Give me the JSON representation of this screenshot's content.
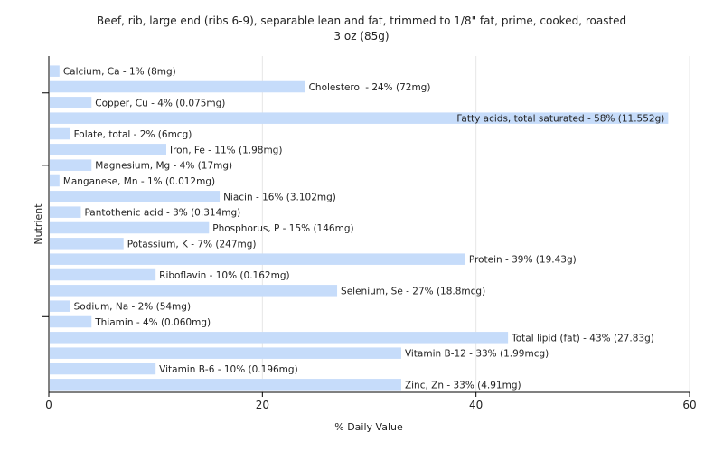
{
  "chart_data": {
    "type": "bar",
    "orientation": "horizontal",
    "title": "Beef, rib, large end (ribs 6-9), separable lean and fat, trimmed to 1/8\" fat, prime, cooked, roasted",
    "subtitle": "3 oz (85g)",
    "xlabel": "% Daily Value",
    "ylabel": "Nutrient",
    "xlim": [
      0,
      60
    ],
    "x_ticks": [
      0,
      20,
      40,
      60
    ],
    "grid": "vertical",
    "colors": {
      "bar": "#c6dcfa",
      "grid": "#e6e6e6",
      "axis": "#000000",
      "text": "#222222"
    },
    "categories": [
      "Calcium, Ca - 1% (8mg)",
      "Cholesterol - 24% (72mg)",
      "Copper, Cu - 4% (0.075mg)",
      "Fatty acids, total saturated - 58% (11.552g)",
      "Folate, total - 2% (6mcg)",
      "Iron, Fe - 11% (1.98mg)",
      "Magnesium, Mg - 4% (17mg)",
      "Manganese, Mn - 1% (0.012mg)",
      "Niacin - 16% (3.102mg)",
      "Pantothenic acid - 3% (0.314mg)",
      "Phosphorus, P - 15% (146mg)",
      "Potassium, K - 7% (247mg)",
      "Protein - 39% (19.43g)",
      "Riboflavin - 10% (0.162mg)",
      "Selenium, Se - 27% (18.8mcg)",
      "Sodium, Na - 2% (54mg)",
      "Thiamin - 4% (0.060mg)",
      "Total lipid (fat) - 43% (27.83g)",
      "Vitamin B-12 - 33% (1.99mcg)",
      "Vitamin B-6 - 10% (0.196mg)",
      "Zinc, Zn - 33% (4.91mg)"
    ],
    "values": [
      1,
      24,
      4,
      58,
      2,
      11,
      4,
      1,
      16,
      3,
      15,
      7,
      39,
      10,
      27,
      2,
      4,
      43,
      33,
      10,
      33
    ]
  }
}
